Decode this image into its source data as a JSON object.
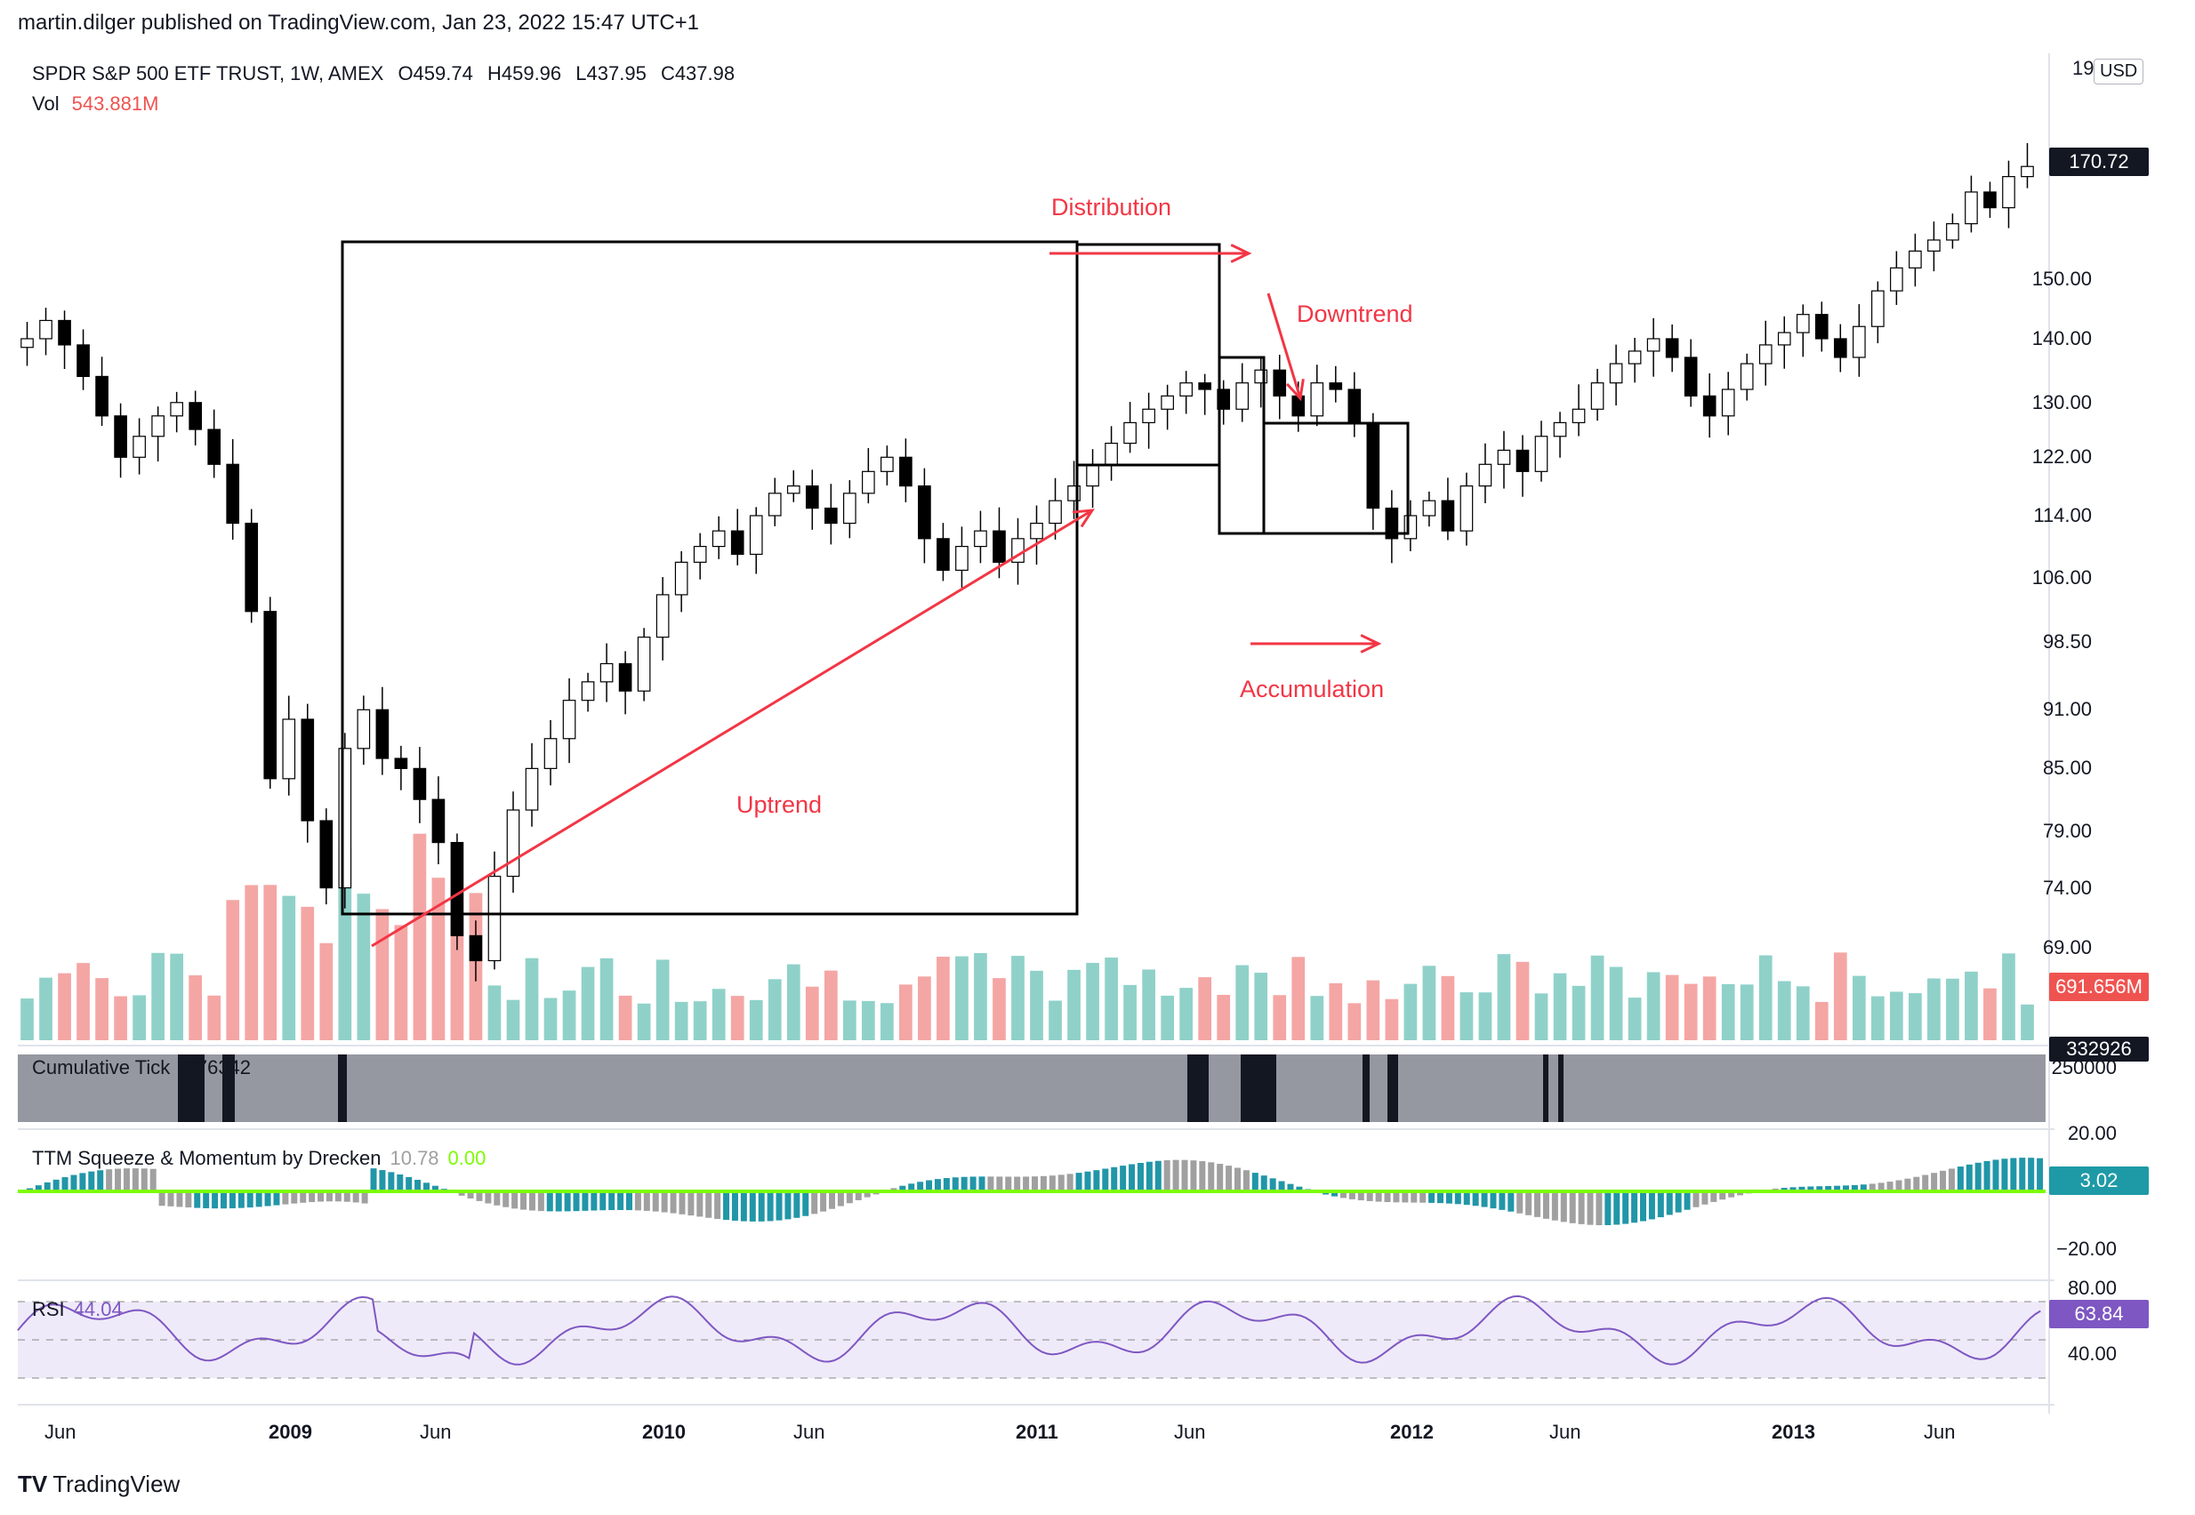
{
  "header": {
    "publisher": "martin.dilger published on TradingView.com, Jan 23, 2022 15:47 UTC+1",
    "symbol": "SPDR S&P 500 ETF TRUST, 1W, AMEX",
    "ohlc": [
      "O459.74",
      "H459.96",
      "L437.95",
      "C437.98"
    ],
    "vol_label": "Vol",
    "vol_value": "543.881M"
  },
  "currency": "USD",
  "brand": "TradingView",
  "colors": {
    "up": "#26a69a",
    "down": "#ef5350",
    "vol_up": "#8fd1c9",
    "vol_down": "#f4a6a4",
    "annotation": "#f23645",
    "rsi": "#7e57c2",
    "squeeze_on": "#e02020",
    "squeeze_off": "#7cfc00"
  },
  "chart_data": {
    "type": "candlestick",
    "scale": "log",
    "x_ticks": [
      "Jun",
      "2009",
      "Jun",
      "2010",
      "Jun",
      "2011",
      "Jun",
      "2012",
      "Jun",
      "2013",
      "Jun"
    ],
    "y_ticks": [
      "150.00",
      "140.00",
      "130.00",
      "122.00",
      "114.00",
      "106.00",
      "98.50",
      "91.00",
      "85.00",
      "79.00",
      "74.00",
      "69.00"
    ],
    "y_top_partial": "19",
    "last_price": "170.72",
    "weekly_close_approx": [
      140,
      143,
      139,
      134,
      128,
      122,
      125,
      128,
      130,
      126,
      121,
      113,
      102,
      84,
      90,
      80,
      74,
      87,
      91,
      86,
      85,
      82,
      78,
      70,
      68,
      75,
      81,
      85,
      88,
      92,
      94,
      96,
      93,
      99,
      104,
      108,
      110,
      112,
      109,
      114,
      117,
      118,
      115,
      113,
      117,
      120,
      122,
      118,
      111,
      107,
      110,
      112,
      108,
      111,
      113,
      116,
      118,
      121,
      124,
      127,
      129,
      131,
      133,
      132,
      129,
      133,
      135,
      131,
      128,
      133,
      132,
      127,
      115,
      111,
      114,
      116,
      112,
      118,
      121,
      123,
      120,
      125,
      127,
      129,
      133,
      136,
      138,
      140,
      137,
      131,
      128,
      132,
      136,
      139,
      141,
      144,
      140,
      137,
      142,
      148,
      152,
      155,
      157,
      160,
      166,
      163,
      169,
      171
    ],
    "volume": {
      "label": "Vol",
      "last_value": "691.656M"
    },
    "cumulative_tick": {
      "label": "Cumulative Tick",
      "value": "-276342",
      "last_value": "332926",
      "axis_ticks": [
        "250000"
      ]
    },
    "ttm_squeeze": {
      "label": "TTM Squeeze & Momentum by Drecken",
      "values": [
        "10.78",
        "0.00"
      ],
      "last_value": "3.02",
      "axis_ticks": [
        "20.00",
        "−20.00"
      ]
    },
    "rsi": {
      "label": "RSI",
      "value": "44.04",
      "last_value": "63.84",
      "axis_ticks": [
        "80.00",
        "40.00"
      ],
      "band": [
        30,
        70
      ]
    }
  },
  "annotations": {
    "distribution": "Distribution",
    "downtrend": "Downtrend",
    "accumulation": "Accumulation",
    "uptrend": "Uptrend"
  }
}
